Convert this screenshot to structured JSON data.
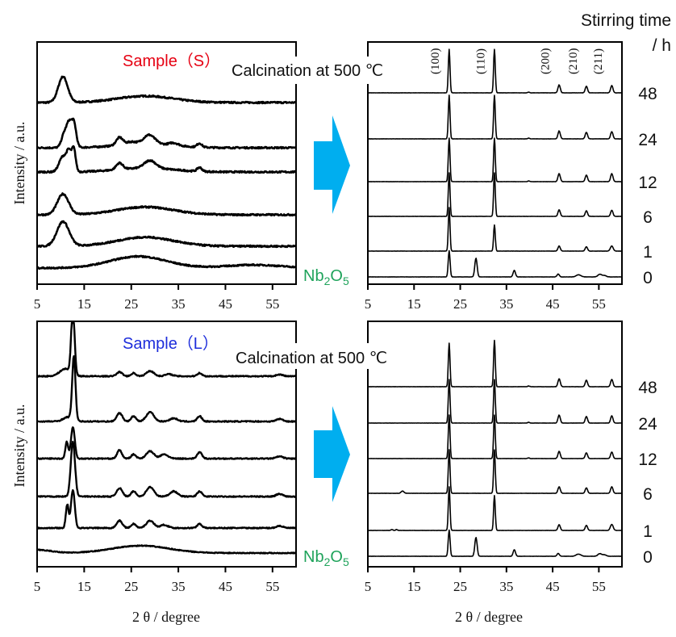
{
  "figure": {
    "xlabel": "2 θ / degree",
    "ylabel": "Intensity / a.u.",
    "stirring_header_line1": "Stirring time",
    "stirring_header_line2": "/ h",
    "arrow_color": "#00AEEF",
    "sample_s_color": "#E60012",
    "sample_l_color": "#1D2DDB",
    "nb2o5_color": "#1FA35B"
  },
  "chart_data": [
    {
      "id": "top-left",
      "type": "line",
      "title": "Sample（S）",
      "xlabel": "",
      "ylabel": "Intensity / a.u.",
      "xlim": [
        5,
        60
      ],
      "xticks": [
        5,
        15,
        25,
        35,
        45,
        55
      ],
      "series": [
        {
          "name": "48",
          "peaks": [
            [
              10.5,
              1.0,
              1.0
            ],
            [
              28,
              0.25,
              6
            ]
          ],
          "noise": 0.03
        },
        {
          "name": "24",
          "peaks": [
            [
              10.8,
              0.55,
              0.6
            ],
            [
              11.8,
              0.8,
              0.5
            ],
            [
              12.8,
              0.95,
              0.5
            ],
            [
              22.5,
              0.3,
              0.7
            ],
            [
              25,
              0.1,
              1
            ],
            [
              28.8,
              0.35,
              1.2
            ],
            [
              34,
              0.1,
              1
            ],
            [
              39.5,
              0.15,
              0.5
            ],
            [
              28,
              0.15,
              6
            ]
          ],
          "noise": 0.03
        },
        {
          "name": "12",
          "peaks": [
            [
              10.5,
              0.6,
              0.8
            ],
            [
              11.8,
              0.7,
              0.5
            ],
            [
              12.8,
              0.85,
              0.4
            ],
            [
              22.5,
              0.25,
              0.7
            ],
            [
              29,
              0.3,
              1.2
            ],
            [
              39.5,
              0.15,
              0.5
            ],
            [
              28,
              0.15,
              6
            ]
          ],
          "noise": 0.03
        },
        {
          "name": "6",
          "peaks": [
            [
              10.5,
              0.8,
              1.2
            ],
            [
              28,
              0.3,
              6
            ]
          ],
          "noise": 0.03
        },
        {
          "name": "1",
          "peaks": [
            [
              10.5,
              0.95,
              1.3
            ],
            [
              28,
              0.35,
              6
            ]
          ],
          "noise": 0.03
        },
        {
          "name": "Nb2O5",
          "peaks": [
            [
              26.5,
              0.45,
              6
            ],
            [
              51,
              0.12,
              6
            ]
          ],
          "noise": 0.025
        }
      ],
      "right_labels": [
        "Nb₂O₅"
      ]
    },
    {
      "id": "top-right",
      "type": "line",
      "title": "Calcination at 500 ℃",
      "xlabel": "2 θ / degree",
      "xlim": [
        5,
        60
      ],
      "xticks": [
        5,
        15,
        25,
        35,
        45,
        55
      ],
      "hkl_labels": [
        {
          "hkl": "(100)",
          "x": 22.5
        },
        {
          "hkl": "(110)",
          "x": 32.3
        },
        {
          "hkl": "(200)",
          "x": 46.3
        },
        {
          "hkl": "(210)",
          "x": 52.3
        },
        {
          "hkl": "(211)",
          "x": 57.7
        }
      ],
      "series": [
        {
          "name": "48",
          "peaks": [
            [
              22.6,
              3.0,
              0.18
            ],
            [
              32.4,
              3.0,
              0.18
            ],
            [
              46.4,
              0.55,
              0.25
            ],
            [
              52.3,
              0.45,
              0.25
            ],
            [
              57.8,
              0.5,
              0.25
            ],
            [
              39.8,
              0.05,
              0.2
            ]
          ]
        },
        {
          "name": "24",
          "peaks": [
            [
              22.6,
              3.0,
              0.18
            ],
            [
              32.4,
              3.0,
              0.18
            ],
            [
              46.4,
              0.55,
              0.25
            ],
            [
              52.3,
              0.45,
              0.25
            ],
            [
              57.8,
              0.5,
              0.25
            ],
            [
              39.8,
              0.05,
              0.2
            ]
          ]
        },
        {
          "name": "12",
          "peaks": [
            [
              22.6,
              3.0,
              0.18
            ],
            [
              32.4,
              3.0,
              0.18
            ],
            [
              46.4,
              0.55,
              0.25
            ],
            [
              52.3,
              0.45,
              0.25
            ],
            [
              57.8,
              0.55,
              0.25
            ],
            [
              39.8,
              0.05,
              0.2
            ]
          ]
        },
        {
          "name": "6",
          "peaks": [
            [
              22.6,
              3.0,
              0.18
            ],
            [
              32.4,
              3.0,
              0.18
            ],
            [
              46.4,
              0.45,
              0.25
            ],
            [
              52.3,
              0.38,
              0.25
            ],
            [
              57.8,
              0.42,
              0.25
            ]
          ]
        },
        {
          "name": "1",
          "peaks": [
            [
              22.6,
              3.0,
              0.18
            ],
            [
              32.4,
              1.8,
              0.18
            ],
            [
              46.4,
              0.35,
              0.25
            ],
            [
              52.3,
              0.3,
              0.25
            ],
            [
              57.8,
              0.35,
              0.3
            ]
          ]
        },
        {
          "name": "0",
          "peaks": [
            [
              22.6,
              1.8,
              0.2
            ],
            [
              28.4,
              1.3,
              0.25
            ],
            [
              36.7,
              0.45,
              0.25
            ],
            [
              46.2,
              0.2,
              0.25
            ],
            [
              50.6,
              0.15,
              0.5
            ],
            [
              55.2,
              0.18,
              0.4
            ],
            [
              56.2,
              0.1,
              0.4
            ]
          ]
        }
      ],
      "right_labels": [
        "48",
        "24",
        "12",
        "6",
        "1",
        "0"
      ]
    },
    {
      "id": "bottom-left",
      "type": "line",
      "title": "Sample（L）",
      "xlabel": "2 θ / degree",
      "ylabel": "Intensity / a.u.",
      "xlim": [
        5,
        60
      ],
      "xticks": [
        5,
        15,
        25,
        35,
        45,
        55
      ],
      "series": [
        {
          "name": "48",
          "peaks": [
            [
              11,
              0.35,
              1.2
            ],
            [
              12.6,
              3.2,
              0.35
            ],
            [
              22.5,
              0.2,
              0.6
            ],
            [
              25.5,
              0.15,
              0.5
            ],
            [
              29,
              0.25,
              0.8
            ],
            [
              33,
              0.1,
              0.8
            ],
            [
              39.5,
              0.15,
              0.5
            ],
            [
              56.5,
              0.08,
              0.7
            ]
          ],
          "noise": 0.025
        },
        {
          "name": "24",
          "peaks": [
            [
              11.5,
              0.2,
              1.0
            ],
            [
              12.8,
              3.0,
              0.35
            ],
            [
              22.5,
              0.4,
              0.6
            ],
            [
              25.5,
              0.25,
              0.5
            ],
            [
              29,
              0.45,
              0.8
            ],
            [
              34,
              0.15,
              0.8
            ],
            [
              39.5,
              0.25,
              0.5
            ],
            [
              56.5,
              0.12,
              0.7
            ]
          ],
          "noise": 0.025
        },
        {
          "name": "12",
          "peaks": [
            [
              11.3,
              0.8,
              0.3
            ],
            [
              12.6,
              1.5,
              0.4
            ],
            [
              22.5,
              0.4,
              0.5
            ],
            [
              25.5,
              0.2,
              0.5
            ],
            [
              29,
              0.35,
              0.8
            ],
            [
              32,
              0.2,
              0.8
            ],
            [
              39.5,
              0.3,
              0.5
            ],
            [
              56.5,
              0.1,
              0.7
            ]
          ],
          "noise": 0.025
        },
        {
          "name": "6",
          "peaks": [
            [
              12.6,
              2.6,
              0.45
            ],
            [
              22.5,
              0.4,
              0.6
            ],
            [
              25.5,
              0.25,
              0.5
            ],
            [
              29,
              0.45,
              0.8
            ],
            [
              34,
              0.25,
              0.8
            ],
            [
              39.5,
              0.25,
              0.5
            ],
            [
              56.5,
              0.12,
              0.7
            ]
          ],
          "noise": 0.025
        },
        {
          "name": "1",
          "peaks": [
            [
              11.4,
              1.1,
              0.3
            ],
            [
              12.6,
              1.8,
              0.4
            ],
            [
              22.5,
              0.35,
              0.6
            ],
            [
              25.5,
              0.2,
              0.5
            ],
            [
              29,
              0.35,
              0.8
            ],
            [
              32,
              0.15,
              0.8
            ],
            [
              39.5,
              0.2,
              0.5
            ],
            [
              56.5,
              0.1,
              0.7
            ]
          ],
          "noise": 0.025
        },
        {
          "name": "Nb2O5",
          "peaks": [
            [
              27,
              0.35,
              6
            ],
            [
              5,
              0.15,
              3
            ]
          ],
          "noise": 0.02
        }
      ],
      "right_labels": [
        "Nb₂O₅"
      ]
    },
    {
      "id": "bottom-right",
      "type": "line",
      "title": "Calcination at 500 ℃",
      "xlabel": "2 θ / degree",
      "xlim": [
        5,
        60
      ],
      "xticks": [
        5,
        15,
        25,
        35,
        45,
        55
      ],
      "series": [
        {
          "name": "48",
          "peaks": [
            [
              22.6,
              3.0,
              0.18
            ],
            [
              32.4,
              3.2,
              0.18
            ],
            [
              46.4,
              0.55,
              0.25
            ],
            [
              52.3,
              0.45,
              0.25
            ],
            [
              57.8,
              0.5,
              0.25
            ],
            [
              39.8,
              0.05,
              0.2
            ]
          ]
        },
        {
          "name": "24",
          "peaks": [
            [
              22.6,
              3.0,
              0.18
            ],
            [
              32.4,
              3.0,
              0.18
            ],
            [
              46.4,
              0.55,
              0.25
            ],
            [
              52.3,
              0.45,
              0.25
            ],
            [
              57.8,
              0.5,
              0.25
            ],
            [
              39.8,
              0.05,
              0.2
            ]
          ]
        },
        {
          "name": "12",
          "peaks": [
            [
              22.6,
              3.0,
              0.18
            ],
            [
              32.4,
              3.0,
              0.18
            ],
            [
              46.4,
              0.5,
              0.25
            ],
            [
              52.3,
              0.4,
              0.25
            ],
            [
              57.8,
              0.45,
              0.25
            ],
            [
              39.8,
              0.05,
              0.2
            ]
          ]
        },
        {
          "name": "6",
          "peaks": [
            [
              12.5,
              0.15,
              0.3
            ],
            [
              22.6,
              3.0,
              0.18
            ],
            [
              32.4,
              3.0,
              0.18
            ],
            [
              46.4,
              0.45,
              0.25
            ],
            [
              52.3,
              0.38,
              0.25
            ],
            [
              57.8,
              0.45,
              0.25
            ]
          ]
        },
        {
          "name": "1",
          "peaks": [
            [
              10.2,
              0.06,
              0.2
            ],
            [
              11.2,
              0.06,
              0.2
            ],
            [
              22.6,
              3.0,
              0.18
            ],
            [
              32.4,
              2.4,
              0.18
            ],
            [
              46.4,
              0.4,
              0.25
            ],
            [
              52.3,
              0.35,
              0.25
            ],
            [
              57.8,
              0.42,
              0.3
            ]
          ]
        },
        {
          "name": "0",
          "peaks": [
            [
              22.6,
              1.8,
              0.2
            ],
            [
              28.4,
              1.3,
              0.25
            ],
            [
              36.7,
              0.45,
              0.25
            ],
            [
              46.2,
              0.2,
              0.25
            ],
            [
              50.6,
              0.15,
              0.5
            ],
            [
              55.2,
              0.18,
              0.4
            ],
            [
              56.2,
              0.1,
              0.4
            ]
          ]
        }
      ],
      "right_labels": [
        "48",
        "24",
        "12",
        "6",
        "1",
        "0"
      ]
    }
  ]
}
